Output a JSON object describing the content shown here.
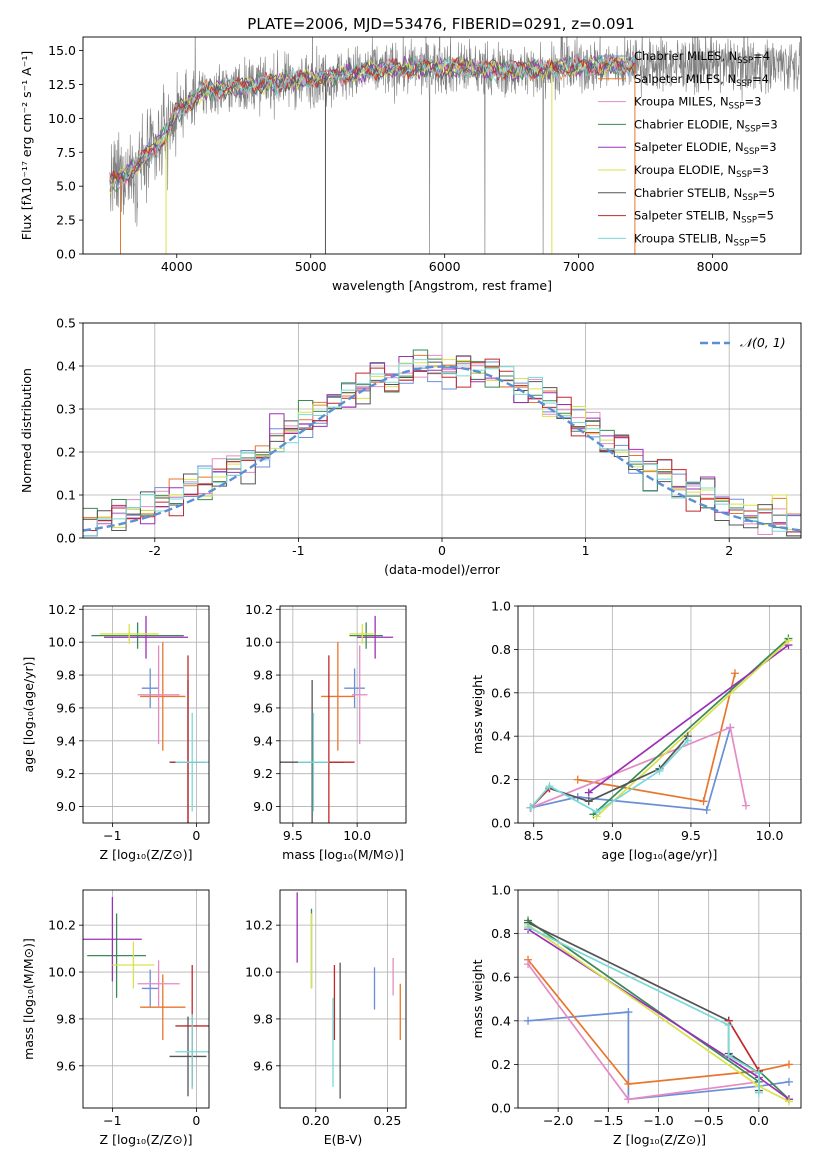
{
  "figure_title": "PLATE=2006, MJD=53476, FIBERID=0291, z=0.091",
  "colors": {
    "chabrier_miles": "#6a8fd8",
    "salpeter_miles": "#e8762d",
    "kroupa_miles": "#e58bc4",
    "chabrier_elodie": "#3a8a55",
    "salpeter_elodie": "#9b30b8",
    "kroupa_elodie": "#d9e24a",
    "chabrier_stelib": "#555555",
    "salpeter_stelib": "#c0282c",
    "kroupa_stelib": "#7ad8d8",
    "spectrum_data": "#808080",
    "normal_curve": "#5b8fd4"
  },
  "models": [
    {
      "key": "chabrier_miles",
      "label": "Chabrier MILES, N",
      "nssp": "=4"
    },
    {
      "key": "salpeter_miles",
      "label": "Salpeter MILES, N",
      "nssp": "=4"
    },
    {
      "key": "kroupa_miles",
      "label": "Kroupa MILES, N",
      "nssp": "=3"
    },
    {
      "key": "chabrier_elodie",
      "label": "Chabrier ELODIE, N",
      "nssp": "=3"
    },
    {
      "key": "salpeter_elodie",
      "label": "Salpeter ELODIE, N",
      "nssp": "=3"
    },
    {
      "key": "kroupa_elodie",
      "label": "Kroupa ELODIE, N",
      "nssp": "=3"
    },
    {
      "key": "chabrier_stelib",
      "label": "Chabrier STELIB, N",
      "nssp": "=5"
    },
    {
      "key": "salpeter_stelib",
      "label": "Salpeter STELIB, N",
      "nssp": "=5"
    },
    {
      "key": "kroupa_stelib",
      "label": "Kroupa STELIB, N",
      "nssp": "=5"
    }
  ],
  "chart_data": [
    {
      "id": "spectrum",
      "type": "line",
      "xlabel": "wavelength [Angstrom, rest frame]",
      "ylabel": "Flux [fλ10⁻¹⁷ erg cm⁻² s⁻¹ A⁻¹]",
      "xlim": [
        3300,
        8660
      ],
      "ylim": [
        0,
        16
      ],
      "xticks": [
        4000,
        5000,
        6000,
        7000,
        8000
      ],
      "yticks": [
        0.0,
        2.5,
        5.0,
        7.5,
        10.0,
        12.5,
        15.0
      ],
      "continuum": {
        "x": [
          3500,
          3700,
          3900,
          4000,
          4200,
          4500,
          5000,
          5500,
          6000,
          6500,
          7000,
          7400
        ],
        "y": [
          5.0,
          6.5,
          8.5,
          10.5,
          12.0,
          12.4,
          12.9,
          13.6,
          13.8,
          13.5,
          13.8,
          14.0
        ]
      },
      "data_range": [
        3500,
        8650
      ],
      "model_range": [
        3500,
        7420
      ]
    },
    {
      "id": "residuals",
      "type": "histogram",
      "xlabel": "(data-model)/error",
      "ylabel": "Normed distribution",
      "xlim": [
        -2.5,
        2.5
      ],
      "ylim": [
        0,
        0.5
      ],
      "xticks": [
        -2,
        -1,
        0,
        1,
        2
      ],
      "yticks": [
        0.0,
        0.1,
        0.2,
        0.3,
        0.4,
        0.5
      ],
      "legend": "𝒩(0, 1)",
      "bin_width": 0.1
    },
    {
      "id": "z_age",
      "type": "errorbar",
      "xlabel": "Z [log₁₀(Z/Z⊙)]",
      "ylabel": "age  [log₁₀(age/yr)]",
      "xlim": [
        -1.35,
        0.15
      ],
      "ylim": [
        8.9,
        10.22
      ],
      "xticks": [
        -1,
        0
      ],
      "yticks": [
        9.0,
        9.2,
        9.4,
        9.6,
        9.8,
        10.0,
        10.2
      ],
      "points": [
        {
          "m": "chabrier_miles",
          "x": -0.55,
          "xerr": 0.1,
          "y": 9.72,
          "yerr": 0.12
        },
        {
          "m": "salpeter_miles",
          "x": -0.4,
          "xerr": 0.27,
          "y": 9.67,
          "yerr": 0.33
        },
        {
          "m": "kroupa_miles",
          "x": -0.45,
          "xerr": 0.25,
          "y": 9.68,
          "yerr": 0.3
        },
        {
          "m": "chabrier_elodie",
          "x": -0.7,
          "xerr": 0.55,
          "y": 10.04,
          "yerr": 0.08
        },
        {
          "m": "salpeter_elodie",
          "x": -0.6,
          "xerr": 0.5,
          "y": 10.03,
          "yerr": 0.13
        },
        {
          "m": "kroupa_elodie",
          "x": -0.8,
          "xerr": 0.35,
          "y": 10.05,
          "yerr": 0.06
        },
        {
          "m": "chabrier_stelib",
          "x": -0.1,
          "xerr": 0.22,
          "y": 9.27,
          "yerr": 0.5
        },
        {
          "m": "salpeter_stelib",
          "x": -0.1,
          "xerr": 0.2,
          "y": 9.27,
          "yerr": 0.65
        },
        {
          "m": "kroupa_stelib",
          "x": -0.05,
          "xerr": 0.2,
          "y": 9.27,
          "yerr": 0.3
        }
      ]
    },
    {
      "id": "mass_age",
      "type": "errorbar",
      "xlabel": "mass [log₁₀(M/M⊙)]",
      "ylabel": "",
      "xlim": [
        9.4,
        10.38
      ],
      "ylim": [
        8.9,
        10.22
      ],
      "xticks": [
        9.5,
        10.0
      ],
      "yticks": [
        9.0,
        9.2,
        9.4,
        9.6,
        9.8,
        10.0,
        10.2
      ],
      "points": [
        {
          "m": "chabrier_miles",
          "x": 9.98,
          "xerr": 0.08,
          "y": 9.72,
          "yerr": 0.12
        },
        {
          "m": "salpeter_miles",
          "x": 9.85,
          "xerr": 0.13,
          "y": 9.67,
          "yerr": 0.33
        },
        {
          "m": "kroupa_miles",
          "x": 10.02,
          "xerr": 0.06,
          "y": 9.68,
          "yerr": 0.3
        },
        {
          "m": "chabrier_elodie",
          "x": 10.07,
          "xerr": 0.13,
          "y": 10.04,
          "yerr": 0.08
        },
        {
          "m": "salpeter_elodie",
          "x": 10.14,
          "xerr": 0.14,
          "y": 10.03,
          "yerr": 0.13
        },
        {
          "m": "kroupa_elodie",
          "x": 10.04,
          "xerr": 0.1,
          "y": 10.05,
          "yerr": 0.06
        },
        {
          "m": "chabrier_stelib",
          "x": 9.65,
          "xerr": 0.25,
          "y": 9.27,
          "yerr": 0.5
        },
        {
          "m": "salpeter_stelib",
          "x": 9.78,
          "xerr": 0.2,
          "y": 9.27,
          "yerr": 0.65
        },
        {
          "m": "kroupa_stelib",
          "x": 9.66,
          "xerr": 0.12,
          "y": 9.27,
          "yerr": 0.3
        }
      ]
    },
    {
      "id": "age_weight",
      "type": "line",
      "xlabel": "age  [log₁₀(age/yr)]",
      "ylabel": "mass weight",
      "xlim": [
        8.4,
        10.2
      ],
      "ylim": [
        0,
        1
      ],
      "xticks": [
        8.5,
        9.0,
        9.5,
        10.0
      ],
      "yticks": [
        0.0,
        0.2,
        0.4,
        0.6,
        0.8,
        1.0
      ],
      "series": [
        {
          "m": "chabrier_miles",
          "x": [
            8.48,
            8.78,
            9.6,
            9.75
          ],
          "y": [
            0.07,
            0.12,
            0.06,
            0.44
          ]
        },
        {
          "m": "salpeter_miles",
          "x": [
            8.78,
            9.58,
            9.78
          ],
          "y": [
            0.2,
            0.1,
            0.69
          ]
        },
        {
          "m": "kroupa_miles",
          "x": [
            8.48,
            9.75,
            9.85
          ],
          "y": [
            0.07,
            0.44,
            0.08
          ]
        },
        {
          "m": "chabrier_elodie",
          "x": [
            8.88,
            10.12
          ],
          "y": [
            0.04,
            0.85
          ]
        },
        {
          "m": "salpeter_elodie",
          "x": [
            8.85,
            10.12
          ],
          "y": [
            0.14,
            0.82
          ]
        },
        {
          "m": "kroupa_elodie",
          "x": [
            8.9,
            10.12
          ],
          "y": [
            0.03,
            0.84
          ]
        },
        {
          "m": "chabrier_stelib",
          "x": [
            8.48,
            8.6,
            8.85,
            9.3,
            9.48
          ],
          "y": [
            0.07,
            0.16,
            0.1,
            0.25,
            0.4
          ]
        },
        {
          "m": "salpeter_stelib",
          "x": [
            8.48,
            8.6
          ],
          "y": [
            0.07,
            0.16
          ]
        },
        {
          "m": "kroupa_stelib",
          "x": [
            8.48,
            8.6,
            8.9,
            9.3,
            9.48
          ],
          "y": [
            0.07,
            0.17,
            0.05,
            0.24,
            0.38
          ]
        }
      ]
    },
    {
      "id": "z_mass",
      "type": "errorbar",
      "xlabel": "Z [log₁₀(Z/Z⊙)]",
      "ylabel": "mass [log₁₀(M/M⊙)]",
      "xlim": [
        -1.35,
        0.15
      ],
      "ylim": [
        9.42,
        10.35
      ],
      "xticks": [
        -1,
        0
      ],
      "yticks": [
        9.6,
        9.8,
        10.0,
        10.2
      ],
      "points": [
        {
          "m": "chabrier_miles",
          "x": -0.55,
          "xerr": 0.1,
          "y": 9.93,
          "yerr": 0.08
        },
        {
          "m": "salpeter_miles",
          "x": -0.4,
          "xerr": 0.27,
          "y": 9.85,
          "yerr": 0.14
        },
        {
          "m": "kroupa_miles",
          "x": -0.45,
          "xerr": 0.25,
          "y": 9.95,
          "yerr": 0.1
        },
        {
          "m": "chabrier_elodie",
          "x": -0.95,
          "xerr": 0.35,
          "y": 10.07,
          "yerr": 0.18
        },
        {
          "m": "salpeter_elodie",
          "x": -1.0,
          "xerr": 0.35,
          "y": 10.14,
          "yerr": 0.18
        },
        {
          "m": "kroupa_elodie",
          "x": -0.75,
          "xerr": 0.25,
          "y": 10.03,
          "yerr": 0.1
        },
        {
          "m": "chabrier_stelib",
          "x": -0.1,
          "xerr": 0.22,
          "y": 9.64,
          "yerr": 0.17
        },
        {
          "m": "salpeter_stelib",
          "x": -0.05,
          "xerr": 0.2,
          "y": 9.77,
          "yerr": 0.26
        },
        {
          "m": "kroupa_stelib",
          "x": -0.05,
          "xerr": 0.2,
          "y": 9.66,
          "yerr": 0.16
        }
      ]
    },
    {
      "id": "ebv_mass",
      "type": "errorbar",
      "xlabel": "E(B-V)",
      "ylabel": "",
      "xlim": [
        0.175,
        0.263
      ],
      "ylim": [
        9.42,
        10.35
      ],
      "xticks": [
        0.2,
        0.25
      ],
      "yticks": [
        9.6,
        9.8,
        10.0,
        10.2
      ],
      "points": [
        {
          "m": "chabrier_miles",
          "x": 0.241,
          "xerr": 0,
          "y": 9.93,
          "yerr": 0.09
        },
        {
          "m": "salpeter_miles",
          "x": 0.259,
          "xerr": 0,
          "y": 9.83,
          "yerr": 0.12
        },
        {
          "m": "kroupa_miles",
          "x": 0.254,
          "xerr": 0,
          "y": 9.98,
          "yerr": 0.08
        },
        {
          "m": "chabrier_elodie",
          "x": 0.197,
          "xerr": 0,
          "y": 10.1,
          "yerr": 0.17
        },
        {
          "m": "salpeter_elodie",
          "x": 0.187,
          "xerr": 0,
          "y": 10.19,
          "yerr": 0.15
        },
        {
          "m": "kroupa_elodie",
          "x": 0.197,
          "xerr": 0,
          "y": 10.09,
          "yerr": 0.16
        },
        {
          "m": "chabrier_stelib",
          "x": 0.217,
          "xerr": 0,
          "y": 9.75,
          "yerr": 0.29
        },
        {
          "m": "salpeter_stelib",
          "x": 0.213,
          "xerr": 0,
          "y": 9.87,
          "yerr": 0.16
        },
        {
          "m": "kroupa_stelib",
          "x": 0.212,
          "xerr": 0,
          "y": 9.7,
          "yerr": 0.19
        }
      ]
    },
    {
      "id": "z_weight",
      "type": "line",
      "xlabel": "Z [log₁₀(Z/Z⊙)]",
      "ylabel": "mass weight",
      "xlim": [
        -2.4,
        0.42
      ],
      "ylim": [
        0,
        1
      ],
      "xticks": [
        -2.0,
        -1.5,
        -1.0,
        -0.5,
        0.0
      ],
      "yticks": [
        0.0,
        0.2,
        0.4,
        0.6,
        0.8,
        1.0
      ],
      "series": [
        {
          "m": "chabrier_miles",
          "x": [
            -2.3,
            -1.3,
            -1.3,
            0.0,
            0.0,
            0.3
          ],
          "y": [
            0.4,
            0.44,
            0.04,
            0.1,
            0.1,
            0.12
          ]
        },
        {
          "m": "salpeter_miles",
          "x": [
            -2.3,
            -1.3,
            0.0,
            0.0,
            0.3
          ],
          "y": [
            0.68,
            0.11,
            0.17,
            0.17,
            0.2
          ]
        },
        {
          "m": "kroupa_miles",
          "x": [
            -2.3,
            -1.3,
            0.0
          ],
          "y": [
            0.66,
            0.04,
            0.12
          ]
        },
        {
          "m": "chabrier_elodie",
          "x": [
            -2.3,
            0.0,
            0.0,
            0.3
          ],
          "y": [
            0.86,
            0.12,
            0.17,
            0.04
          ]
        },
        {
          "m": "salpeter_elodie",
          "x": [
            -2.3,
            0.0,
            0.3
          ],
          "y": [
            0.82,
            0.14,
            0.04
          ]
        },
        {
          "m": "kroupa_elodie",
          "x": [
            -2.3,
            0.0,
            0.3
          ],
          "y": [
            0.84,
            0.1,
            0.03
          ]
        },
        {
          "m": "chabrier_stelib",
          "x": [
            -2.3,
            -0.3,
            -0.3,
            0.0,
            0.0
          ],
          "y": [
            0.85,
            0.4,
            0.25,
            0.16,
            0.08
          ]
        },
        {
          "m": "salpeter_stelib",
          "x": [
            -0.3,
            0.0
          ],
          "y": [
            0.4,
            0.17
          ]
        },
        {
          "m": "kroupa_stelib",
          "x": [
            -2.3,
            -0.3,
            -0.3,
            0.0,
            0.0
          ],
          "y": [
            0.83,
            0.38,
            0.24,
            0.16,
            0.07
          ]
        }
      ]
    }
  ]
}
